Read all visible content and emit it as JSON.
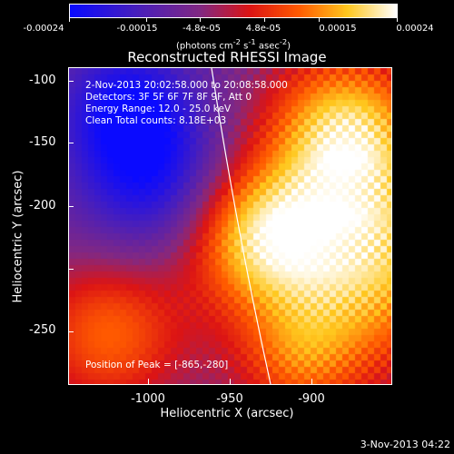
{
  "colorbar": {
    "tick_labels": [
      "-0.00024",
      "-0.00015",
      "-4.8e-05",
      "4.8e-05",
      "0.00015",
      "0.00024"
    ],
    "unit_html": "(photons cm<sup>-2</sup> s<sup>-1</sup> asec<sup>-2</sup>)"
  },
  "plot": {
    "title": "Reconstructed RHESSI Image",
    "info_lines": [
      "2-Nov-2013 20:02:58.000 to 20:08:58.000",
      "Detectors: 3F 5F 6F 7F 8F 9F, Att 0",
      "Energy Range: 12.0 - 25.0 keV",
      "Clean    Total counts: 8.18E+03"
    ],
    "peak_text": "Position of Peak = [-865,-280]",
    "x_axis": {
      "label": "Heliocentric X (arcsec)",
      "ticks": [
        "-1000",
        "-950",
        "-900"
      ],
      "range": [
        -1047,
        -860
      ]
    },
    "y_axis": {
      "label": "Heliocentric Y (arcsec)",
      "ticks": [
        "-100",
        "-150",
        "-200",
        "-250"
      ],
      "range": [
        -288,
        -90
      ]
    }
  },
  "footer": {
    "timestamp": "3-Nov-2013 04:22"
  },
  "colors": {
    "background": "#000000",
    "foreground": "#ffffff",
    "limb_line": "#ffffff"
  }
}
